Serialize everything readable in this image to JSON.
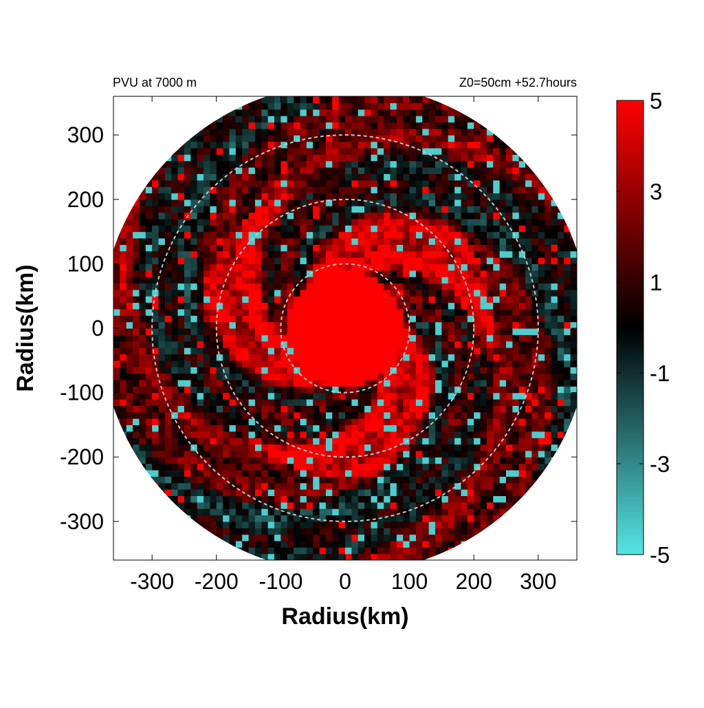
{
  "chart_data": {
    "type": "heatmap",
    "title_left": "PVU at  7000 m",
    "title_right": "Z0=50cm  +52.7hours",
    "xlabel": "Radius(km)",
    "ylabel": "Radius(km)",
    "xlim": [
      -360,
      360
    ],
    "ylim": [
      -360,
      360
    ],
    "x_ticks": [
      -300,
      -200,
      -100,
      0,
      100,
      200,
      300
    ],
    "y_ticks": [
      -300,
      -200,
      -100,
      0,
      100,
      200,
      300
    ],
    "x_tick_labels": [
      "-300",
      "-200",
      "-100",
      "0",
      "100",
      "200",
      "300"
    ],
    "y_tick_labels": [
      "-300",
      "-200",
      "-100",
      "0",
      "100",
      "200",
      "300"
    ],
    "domain_radius_km": 380,
    "reference_circles_km": [
      100,
      200,
      300
    ],
    "colorbar": {
      "range": [
        -5,
        5
      ],
      "ticks": [
        5,
        3,
        1,
        -1,
        -3,
        -5
      ],
      "tick_labels": [
        "5",
        "3",
        "1",
        "-1",
        "-3",
        "-5"
      ],
      "colors": {
        "positive_max": "#ff0000",
        "zero": "#000000",
        "negative_max": "#55e5e5"
      }
    },
    "field_description_values": {
      "core_radius_km": 90,
      "core_value": 5,
      "ring_inner_km": 110,
      "ring_outer_km": 230,
      "ring_mean": 2.5,
      "outer_mean": 0.9,
      "spiral_arms": 3
    }
  }
}
